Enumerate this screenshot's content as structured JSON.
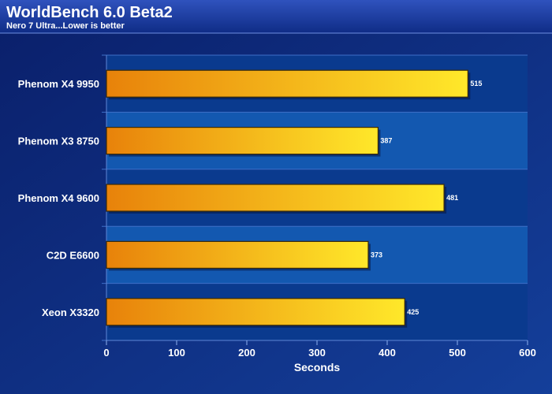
{
  "chart_data": {
    "type": "bar",
    "orientation": "horizontal",
    "title": "WorldBench 6.0 Beta2",
    "subtitle": "Nero 7 Ultra...Lower is better",
    "xlabel": "Seconds",
    "ylabel": "",
    "categories": [
      "Phenom X4 9950",
      "Phenom X3 8750",
      "Phenom X4 9600",
      "C2D E6600",
      "Xeon X3320"
    ],
    "values": [
      515,
      387,
      481,
      373,
      425
    ],
    "xlim": [
      0,
      600
    ],
    "ticks": [
      0,
      100,
      200,
      300,
      400,
      500,
      600
    ],
    "grid": false,
    "legend": "none",
    "colors": {
      "background": "#08246a",
      "header": "#1a3a9c",
      "plot_band_dark": "#0a3a8e",
      "plot_band_light": "#1358b0",
      "bar_start": "#e8820a",
      "bar_end": "#ffe82a",
      "bar_edge": "#3a2a08",
      "text": "#ffffff"
    }
  }
}
